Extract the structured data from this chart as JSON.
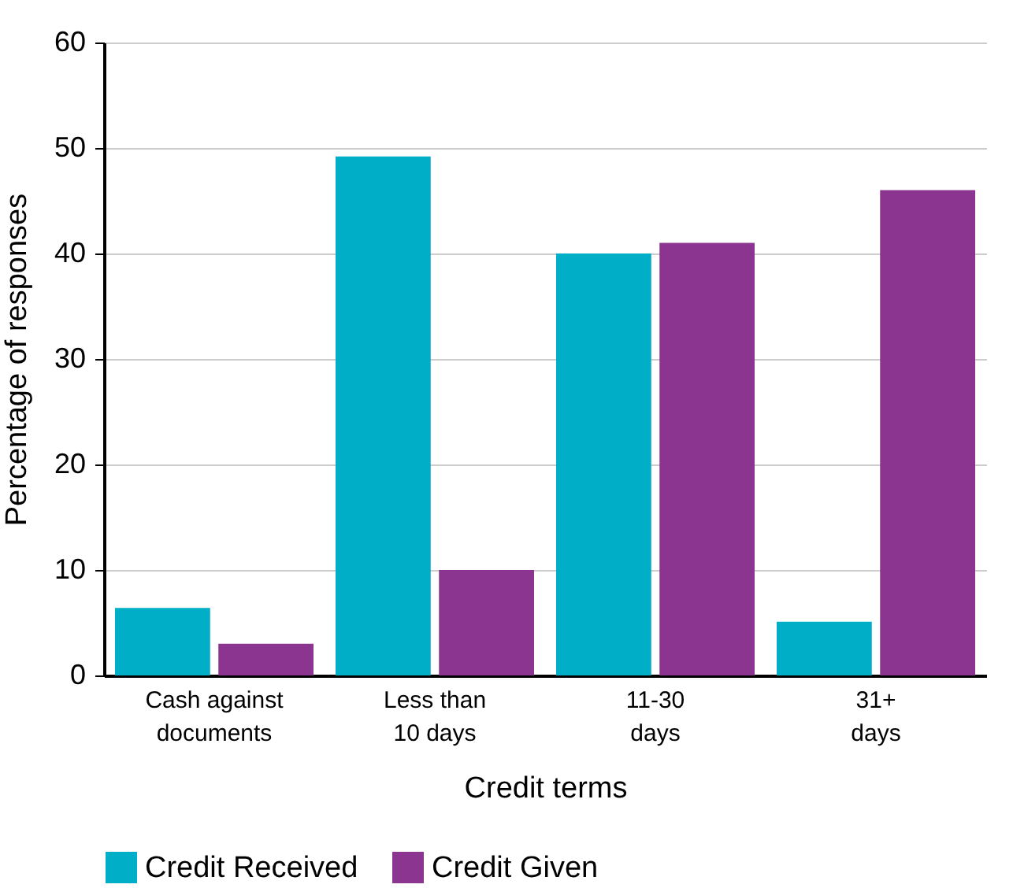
{
  "chart_data": {
    "type": "bar",
    "xlabel": "Credit terms",
    "ylabel": "Percentage of responses",
    "categories": [
      "Cash against\ndocuments",
      "Less than\n10 days",
      "11-30\ndays",
      "31+\ndays"
    ],
    "series": [
      {
        "name": "Credit Received",
        "color": "#00aec7",
        "values": [
          6.4,
          49.2,
          40,
          5.1
        ]
      },
      {
        "name": "Credit Given",
        "color": "#8b3591",
        "values": [
          3,
          10,
          41,
          46
        ]
      }
    ],
    "ylim": [
      0,
      60
    ],
    "yticks": [
      0,
      10,
      20,
      30,
      40,
      50,
      60
    ],
    "grid": "y",
    "legend": "bottom left"
  }
}
